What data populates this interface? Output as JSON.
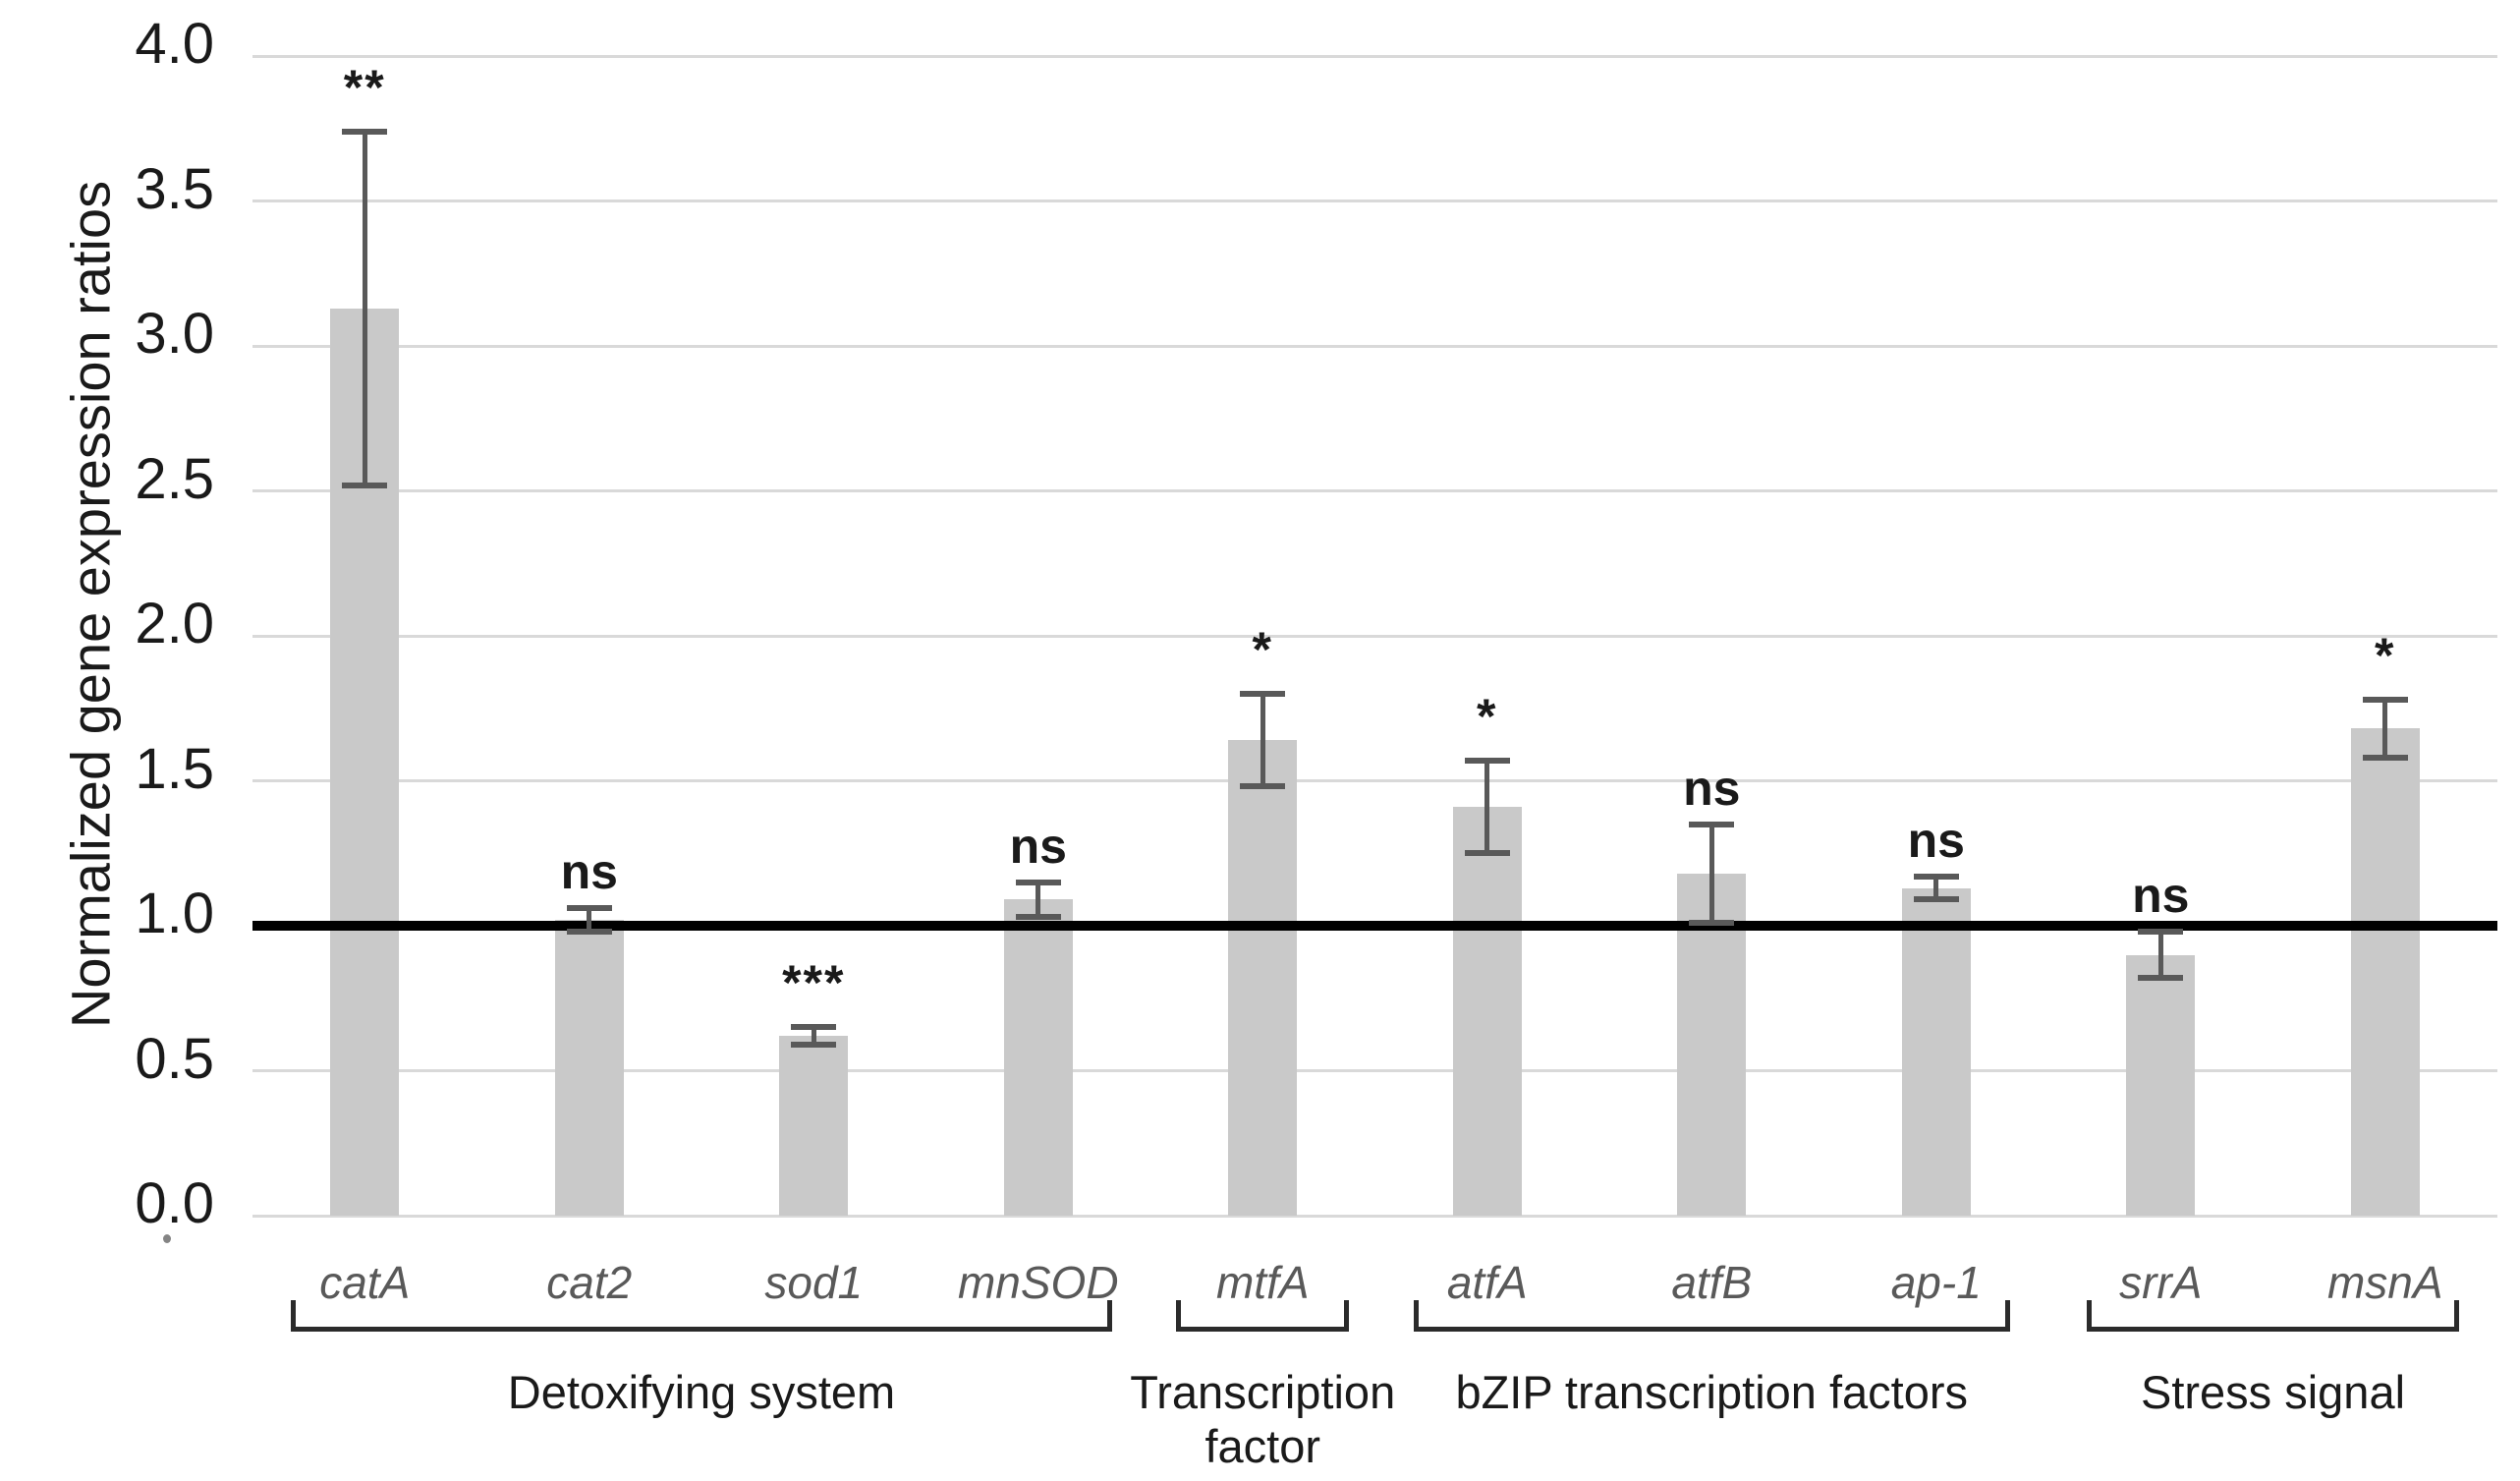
{
  "chart_data": {
    "type": "bar",
    "title": "",
    "xlabel": "",
    "ylabel": "Normalized gene expression ratios",
    "ylim": [
      0.0,
      4.0
    ],
    "ytick_step": 0.5,
    "ytick_labels": [
      "4.0",
      "3.5",
      "3.0",
      "2.5",
      "2.0",
      "1.5",
      "1.0",
      "0.5",
      "0.0"
    ],
    "grid": "horizontal gridlines on",
    "legend": "none",
    "reference_line_y": 1.0,
    "categories": [
      "catA",
      "cat2",
      "sod1",
      "mnSOD",
      "mtfA",
      "atfA",
      "atfB",
      "ap-1",
      "srrA",
      "msnA"
    ],
    "values": [
      3.13,
      1.02,
      0.62,
      1.09,
      1.64,
      1.41,
      1.18,
      1.13,
      0.9,
      1.68
    ],
    "errors": [
      0.61,
      0.04,
      0.03,
      0.06,
      0.16,
      0.16,
      0.17,
      0.04,
      0.08,
      0.1
    ],
    "significance": [
      "**",
      "ns",
      "***",
      "ns",
      "*",
      "*",
      "ns",
      "ns",
      "ns",
      "*"
    ],
    "groups": [
      {
        "label": "Detoxifying system",
        "from": 0,
        "to": 3
      },
      {
        "label": "Transcription\nfactor",
        "from": 4,
        "to": 4
      },
      {
        "label": "bZIP transcription factors",
        "from": 5,
        "to": 7
      },
      {
        "label": "Stress signal",
        "from": 8,
        "to": 9
      }
    ],
    "colors": {
      "bar_fill": "#c9c9c9",
      "error_bar": "#595959",
      "gridline": "#d9d9d9",
      "reference_line": "#000000",
      "tick_text": "#1a1a1a",
      "category_text": "#595959",
      "group_text": "#1a1a1a"
    }
  }
}
